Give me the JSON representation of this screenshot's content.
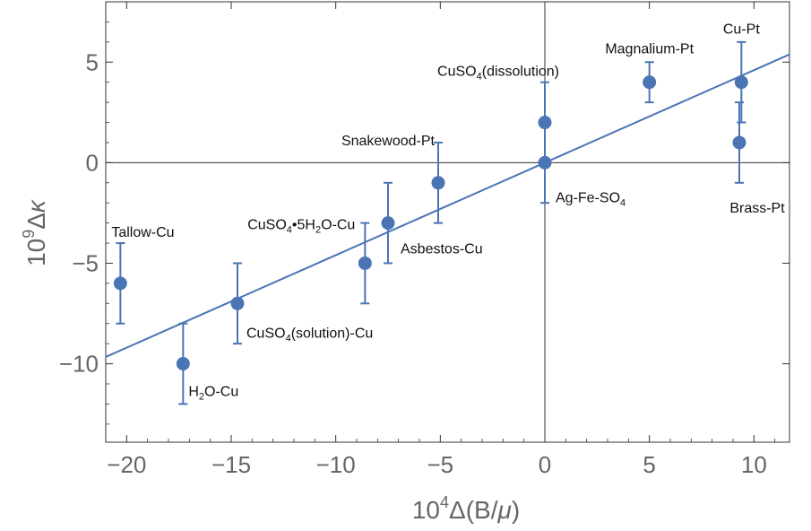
{
  "chart_data": {
    "type": "scatter",
    "title": "",
    "xlabel": {
      "base": "10",
      "exp": "4",
      "rest": "Δ(B/",
      "mu": "μ",
      "close": ")"
    },
    "ylabel": {
      "base": "10",
      "exp": "9",
      "rest": "Δ",
      "kappa": "κ"
    },
    "xlim": [
      -21,
      11.7
    ],
    "ylim": [
      -13.9,
      8
    ],
    "xticks": [
      -20,
      -15,
      -10,
      -5,
      0,
      5,
      10
    ],
    "yticks": [
      -10,
      -5,
      0,
      5
    ],
    "xtick_labels": [
      "−20",
      "−15",
      "−10",
      "−5",
      "0",
      "5",
      "10"
    ],
    "ytick_labels": [
      "−10",
      "−5",
      "0",
      "5"
    ],
    "grid": false,
    "legend": "none",
    "colors": {
      "series": "#4a74b4",
      "axis": "#333333",
      "text": "#666666"
    },
    "fit_line": {
      "slope": 0.46,
      "intercept": 0.0
    },
    "points": [
      {
        "x": -20.3,
        "y": -6,
        "err": 2,
        "label": {
          "pre": "Tallow-Cu"
        }
      },
      {
        "x": -17.3,
        "y": -10,
        "err": 2,
        "label": {
          "pre": "H",
          "sub": "2",
          "post": "O-Cu"
        }
      },
      {
        "x": -14.7,
        "y": -7,
        "err": 2,
        "label": {
          "pre": "CuSO",
          "sub": "4",
          "post": "(solution)-Cu"
        }
      },
      {
        "x": -8.6,
        "y": -5,
        "err": 2,
        "label": {
          "pre": "CuSO",
          "sub": "4",
          "post": "•5H",
          "sub2": "2",
          "post2": "O-Cu"
        }
      },
      {
        "x": -7.5,
        "y": -3,
        "err": 2,
        "label": {
          "pre": "Asbestos-Cu"
        }
      },
      {
        "x": -5.1,
        "y": -1,
        "err": 2,
        "label": {
          "pre": "Snakewood-Pt"
        }
      },
      {
        "x": 0,
        "y": 2,
        "err": 2,
        "label": {
          "pre": "CuSO",
          "sub": "4",
          "post": "(dissolution)"
        }
      },
      {
        "x": 0,
        "y": 0,
        "err": 2,
        "label": {
          "pre": "Ag-Fe-SO",
          "sub": "4"
        }
      },
      {
        "x": 5,
        "y": 4,
        "err": 1,
        "label": {
          "pre": "Magnalium-Pt"
        }
      },
      {
        "x": 9.4,
        "y": 4,
        "err": 2,
        "label": {
          "pre": "Cu-Pt"
        }
      },
      {
        "x": 9.3,
        "y": 1,
        "err": 2,
        "label": {
          "pre": "Brass-Pt"
        }
      }
    ]
  }
}
